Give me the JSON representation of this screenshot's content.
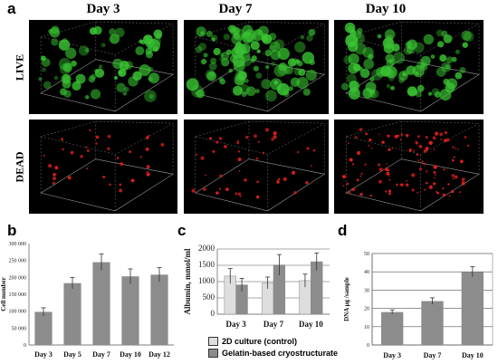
{
  "panel_a": {
    "letter": "a",
    "columns": [
      "Day 3",
      "Day 7",
      "Day 10"
    ],
    "rows": [
      "LIVE",
      "DEAD"
    ],
    "colors": {
      "live": "#39c432",
      "dead": "#e0201c",
      "background": "#000000"
    }
  },
  "panel_b": {
    "letter": "b"
  },
  "panel_c": {
    "letter": "c",
    "legend": [
      "2D culture (control)",
      "Gelatin-based cryostructurate"
    ]
  },
  "panel_d": {
    "letter": "d"
  },
  "chart_data": [
    {
      "panel": "b",
      "type": "bar",
      "categories": [
        "Day 3",
        "Day 5",
        "Day 7",
        "Day 10",
        "Day 12"
      ],
      "values": [
        98000,
        183000,
        245000,
        203000,
        208000
      ],
      "errors": [
        12000,
        17000,
        24000,
        22000,
        21000
      ],
      "ylabel": "Cell number",
      "yticks": [
        "0",
        "50 000",
        "100 000",
        "150 000",
        "200 000",
        "250 000",
        "300 000"
      ],
      "ylim": [
        0,
        300000
      ],
      "bar_color": "#8c8c8c"
    },
    {
      "panel": "c",
      "type": "bar",
      "categories": [
        "Day 3",
        "Day 7",
        "Day 10"
      ],
      "series": [
        {
          "name": "2D culture (control)",
          "values": [
            1170,
            960,
            1030
          ],
          "errors": [
            230,
            180,
            200
          ],
          "color": "#dedede"
        },
        {
          "name": "Gelatin-based cryostructurate",
          "values": [
            900,
            1510,
            1610
          ],
          "errors": [
            200,
            320,
            270
          ],
          "color": "#8c8c8c"
        }
      ],
      "ylabel": "Albumin, mmol/ml",
      "yticks": [
        "0",
        "500",
        "1000",
        "1500",
        "2000"
      ],
      "ylim": [
        0,
        2000
      ],
      "grid": true
    },
    {
      "panel": "d",
      "type": "bar",
      "categories": [
        "Day 3",
        "Day 7",
        "Day 10"
      ],
      "values": [
        18,
        24,
        40
      ],
      "errors": [
        1.2,
        1.8,
        2.8
      ],
      "ylabel": "DNA µg /sample",
      "yticks": [
        "0",
        "10",
        "20",
        "30",
        "40",
        "50"
      ],
      "ylim": [
        0,
        50
      ],
      "grid": true,
      "bar_color": "#8c8c8c"
    }
  ]
}
